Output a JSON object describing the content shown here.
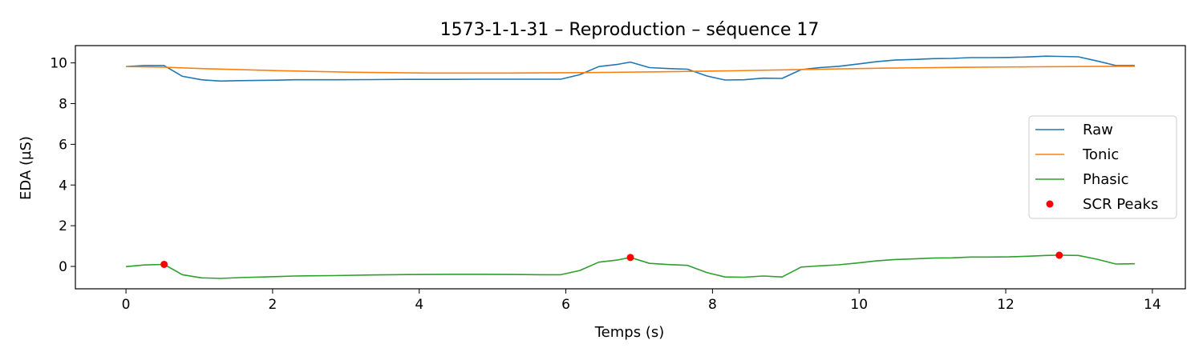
{
  "chart_data": {
    "type": "line",
    "title": "1573-1-1-31 – Reproduction – séquence 17",
    "xlabel": "Temps (s)",
    "ylabel": "EDA (µS)",
    "xlim": [
      -0.69,
      14.45
    ],
    "ylim": [
      -1.1,
      10.85
    ],
    "xticks": [
      0,
      2,
      4,
      6,
      8,
      10,
      12,
      14
    ],
    "yticks": [
      0,
      2,
      4,
      6,
      8,
      10
    ],
    "grid": false,
    "legend_position": "center-right",
    "series": [
      {
        "name": "Raw",
        "color": "#1f77b4",
        "x": [
          0,
          0.25,
          0.52,
          0.77,
          1.03,
          1.29,
          1.55,
          2.07,
          2.3,
          2.84,
          3.35,
          3.87,
          4.38,
          4.9,
          5.41,
          5.67,
          5.93,
          6.19,
          6.45,
          6.71,
          6.88,
          7.14,
          7.4,
          7.66,
          7.92,
          8.17,
          8.43,
          8.69,
          8.95,
          9.21,
          9.46,
          9.72,
          9.98,
          10.24,
          10.49,
          10.75,
          11.01,
          11.27,
          11.52,
          11.78,
          12.04,
          12.3,
          12.55,
          12.73,
          12.99,
          13.25,
          13.5,
          13.76
        ],
        "y": [
          9.82,
          9.87,
          9.87,
          9.34,
          9.17,
          9.11,
          9.13,
          9.15,
          9.17,
          9.17,
          9.18,
          9.19,
          9.19,
          9.2,
          9.2,
          9.2,
          9.2,
          9.42,
          9.82,
          9.93,
          10.04,
          9.77,
          9.72,
          9.69,
          9.36,
          9.16,
          9.17,
          9.25,
          9.24,
          9.67,
          9.77,
          9.83,
          9.94,
          10.06,
          10.14,
          10.17,
          10.21,
          10.22,
          10.26,
          10.26,
          10.27,
          10.29,
          10.33,
          10.32,
          10.3,
          10.09,
          9.87,
          9.87
        ]
      },
      {
        "name": "Tonic",
        "color": "#ff7f0e",
        "x": [
          0,
          0.52,
          1.03,
          2.07,
          3.1,
          4.13,
          5.16,
          6.19,
          7.22,
          8.25,
          9.29,
          10.32,
          11.35,
          12.38,
          13.42,
          13.76
        ],
        "y": [
          9.82,
          9.79,
          9.72,
          9.62,
          9.54,
          9.5,
          9.5,
          9.52,
          9.56,
          9.61,
          9.68,
          9.74,
          9.78,
          9.81,
          9.83,
          9.83
        ]
      },
      {
        "name": "Phasic",
        "color": "#2ca02c",
        "x": [
          0,
          0.25,
          0.52,
          0.77,
          1.03,
          1.29,
          1.55,
          2.07,
          2.3,
          2.84,
          3.35,
          3.87,
          4.38,
          4.9,
          5.41,
          5.67,
          5.93,
          6.19,
          6.45,
          6.71,
          6.88,
          7.14,
          7.4,
          7.66,
          7.92,
          8.17,
          8.43,
          8.69,
          8.95,
          9.21,
          9.46,
          9.72,
          9.98,
          10.24,
          10.49,
          10.75,
          11.01,
          11.27,
          11.52,
          11.78,
          12.04,
          12.3,
          12.55,
          12.73,
          12.99,
          13.25,
          13.5,
          13.76
        ],
        "y": [
          -0.01,
          0.07,
          0.1,
          -0.41,
          -0.56,
          -0.59,
          -0.55,
          -0.5,
          -0.47,
          -0.45,
          -0.42,
          -0.4,
          -0.39,
          -0.39,
          -0.4,
          -0.41,
          -0.41,
          -0.2,
          0.21,
          0.32,
          0.44,
          0.15,
          0.09,
          0.05,
          -0.3,
          -0.52,
          -0.53,
          -0.47,
          -0.52,
          -0.03,
          0.03,
          0.08,
          0.17,
          0.27,
          0.34,
          0.37,
          0.41,
          0.42,
          0.46,
          0.46,
          0.47,
          0.5,
          0.54,
          0.55,
          0.54,
          0.35,
          0.12,
          0.13
        ]
      }
    ],
    "peaks": {
      "name": "SCR Peaks",
      "color": "#ff0000",
      "x": [
        0.52,
        6.88,
        12.73
      ],
      "y": [
        0.1,
        0.44,
        0.55
      ]
    }
  }
}
